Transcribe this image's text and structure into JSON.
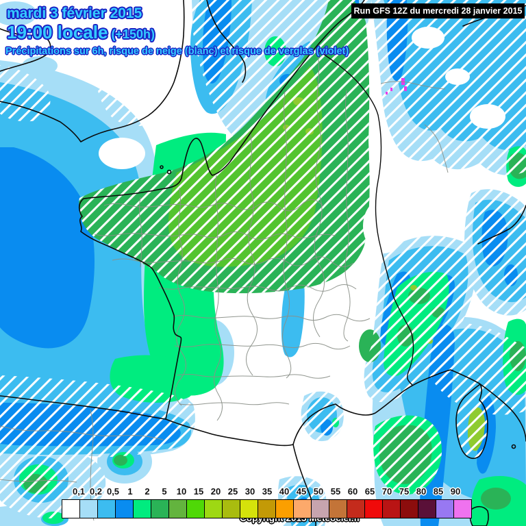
{
  "header": {
    "date_line": "mardi 3 février 2015",
    "time_line": "19:00 locale",
    "offset_label": " (+150h)",
    "subtitle": "Précipitations sur 6h, risque de neige (blanc) et risque de verglas (violet)",
    "run_label": "Run GFS 12Z du mercredi 28 janvier 2015",
    "title_color": "#35CBFF",
    "title_outline_color": "#1A22C4"
  },
  "footer": {
    "copyright_label": "Copyright 2015 Meteociel.fr"
  },
  "legend": {
    "unit_labels": [
      "0,1",
      "0,2",
      "0,5",
      "1",
      "2",
      "5",
      "10",
      "15",
      "20",
      "25",
      "30",
      "35",
      "40",
      "45",
      "50",
      "55",
      "60",
      "65",
      "70",
      "75",
      "80",
      "85",
      "90"
    ],
    "cell_colors": [
      "#FFFFFF",
      "#A6DEF7",
      "#3CBCF0",
      "#098CF0",
      "#00EC7F",
      "#2AB357",
      "#63B43E",
      "#4FD807",
      "#9ED813",
      "#A9BC0F",
      "#D5E20B",
      "#C39A06",
      "#FB9F00",
      "#FCA96B",
      "#C7A4AE",
      "#C37438",
      "#C42B1C",
      "#F00A0A",
      "#B91414",
      "#8C0D0D",
      "#5A1038",
      "#9878F2",
      "#EF72EF"
    ]
  },
  "map": {
    "palette": {
      "rain_pale": "#A6DEF7",
      "rain_cyan": "#3CBCF0",
      "rain_blue": "#098CF0",
      "rain_spring": "#00EC7F",
      "rain_green": "#2AB357",
      "rain_bright": "#53C42F",
      "rain_olive": "#8FCB30",
      "verglas": "#E83BE8",
      "snow_hatch": "#FFFFFF",
      "coast": "#0A0A0A",
      "dept": "#8B9089"
    }
  }
}
